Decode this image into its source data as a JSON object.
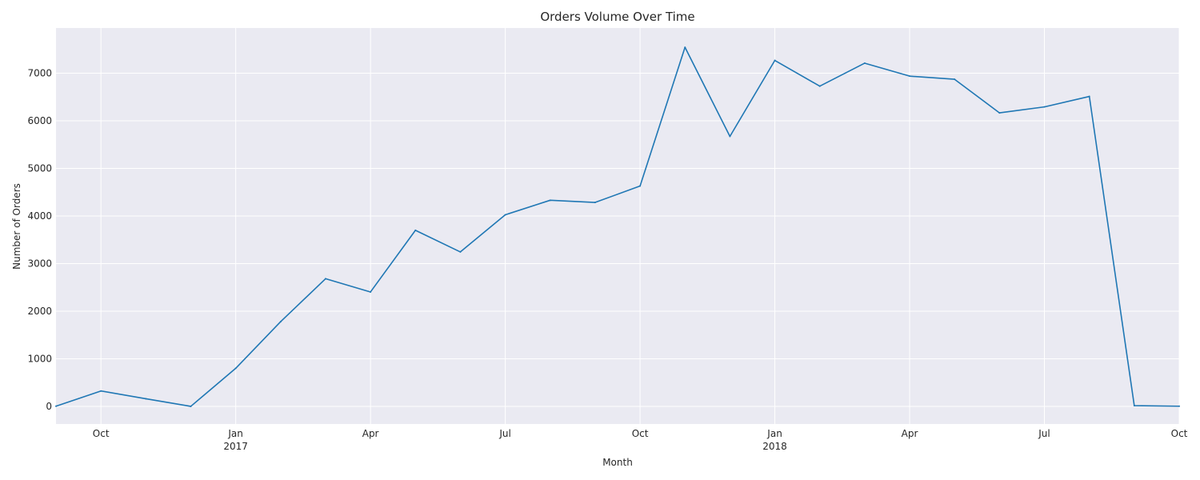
{
  "chart_data": {
    "type": "line",
    "title": "Orders Volume Over Time",
    "xlabel": "Month",
    "ylabel": "Number of Orders",
    "grid": true,
    "legend": "none",
    "colors": {
      "line": "#1f77b4",
      "plot_background": "#eaeaf2",
      "grid": "#ffffff"
    },
    "xlim": [
      "2016-09",
      "2018-10"
    ],
    "ylim": [
      -370,
      7950
    ],
    "y_ticks": [
      0,
      1000,
      2000,
      3000,
      4000,
      5000,
      6000,
      7000
    ],
    "x_ticks": [
      {
        "month": "2016-10",
        "label": "Oct",
        "year_label": ""
      },
      {
        "month": "2017-01",
        "label": "Jan",
        "year_label": "2017"
      },
      {
        "month": "2017-04",
        "label": "Apr",
        "year_label": ""
      },
      {
        "month": "2017-07",
        "label": "Jul",
        "year_label": ""
      },
      {
        "month": "2017-10",
        "label": "Oct",
        "year_label": ""
      },
      {
        "month": "2018-01",
        "label": "Jan",
        "year_label": "2018"
      },
      {
        "month": "2018-04",
        "label": "Apr",
        "year_label": ""
      },
      {
        "month": "2018-07",
        "label": "Jul",
        "year_label": ""
      },
      {
        "month": "2018-10",
        "label": "Oct",
        "year_label": ""
      }
    ],
    "series": [
      {
        "x": [
          "2016-09",
          "2016-10",
          "2016-11",
          "2016-12",
          "2017-01",
          "2017-02",
          "2017-03",
          "2017-04",
          "2017-05",
          "2017-06",
          "2017-07",
          "2017-08",
          "2017-09",
          "2017-10",
          "2017-11",
          "2017-12",
          "2018-01",
          "2018-02",
          "2018-03",
          "2018-04",
          "2018-05",
          "2018-06",
          "2018-07",
          "2018-08",
          "2018-09",
          "2018-10"
        ],
        "y": [
          4,
          324,
          160,
          1,
          800,
          1780,
          2682,
          2404,
          3700,
          3245,
          4026,
          4331,
          4285,
          4631,
          7544,
          5673,
          7269,
          6728,
          7211,
          6939,
          6873,
          6167,
          6292,
          6512,
          16,
          4
        ]
      }
    ]
  }
}
